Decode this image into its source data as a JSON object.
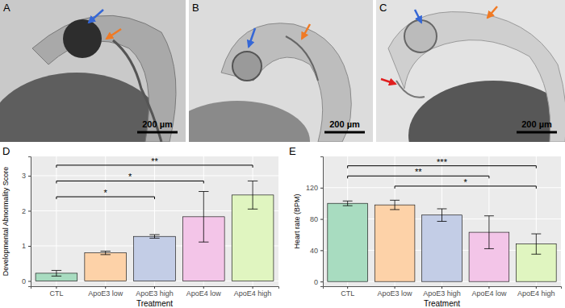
{
  "images": [
    {
      "label": "A",
      "scale_bar": "200 µm"
    },
    {
      "label": "B",
      "scale_bar": "200 µm"
    },
    {
      "label": "C",
      "scale_bar": "200 µm"
    }
  ],
  "chart_data": [
    {
      "type": "bar",
      "title": "D",
      "x_label": "Treatment",
      "y_label": "Developmental Abnormality Score",
      "categories": [
        "CTL",
        "ApoE3 low",
        "ApoE3 high",
        "ApoE4 low",
        "ApoE4 high"
      ],
      "values": [
        0.22,
        0.8,
        1.27,
        1.83,
        2.45
      ],
      "errors": [
        0.08,
        0.05,
        0.05,
        0.72,
        0.4
      ],
      "colors": [
        "#a8dcc0",
        "#fdd2a8",
        "#c3cde6",
        "#f3c5e8",
        "#e0f5c0"
      ],
      "ylim": [
        -0.15,
        3.55
      ],
      "yticks": [
        0,
        1,
        2,
        3
      ],
      "grid": true,
      "annotations": [
        {
          "text": "*",
          "from": "CTL",
          "to": "ApoE3 high",
          "y": 2.4
        },
        {
          "text": "*",
          "from": "CTL",
          "to": "ApoE4 low",
          "y": 2.85
        },
        {
          "text": "**",
          "from": "CTL",
          "to": "ApoE4 high",
          "y": 3.3
        }
      ]
    },
    {
      "type": "bar",
      "title": "E",
      "x_label": "Treatment",
      "y_label": "Heart rate (BPM)",
      "categories": [
        "CTL",
        "ApoE3 low",
        "ApoE3 high",
        "ApoE4 low",
        "ApoE4 high"
      ],
      "values": [
        100,
        98,
        85,
        63,
        48
      ],
      "errors": [
        3,
        6,
        8,
        21,
        13
      ],
      "colors": [
        "#a8dcc0",
        "#fdd2a8",
        "#c3cde6",
        "#f3c5e8",
        "#e0f5c0"
      ],
      "ylim": [
        -6,
        160
      ],
      "yticks": [
        0,
        40,
        80,
        120
      ],
      "grid": true,
      "annotations": [
        {
          "text": "*",
          "from": "ApoE3 low",
          "to": "ApoE4 high",
          "y": 122
        },
        {
          "text": "**",
          "from": "CTL",
          "to": "ApoE4 low",
          "y": 135
        },
        {
          "text": "***",
          "from": "CTL",
          "to": "ApoE4 high",
          "y": 148
        }
      ]
    }
  ]
}
